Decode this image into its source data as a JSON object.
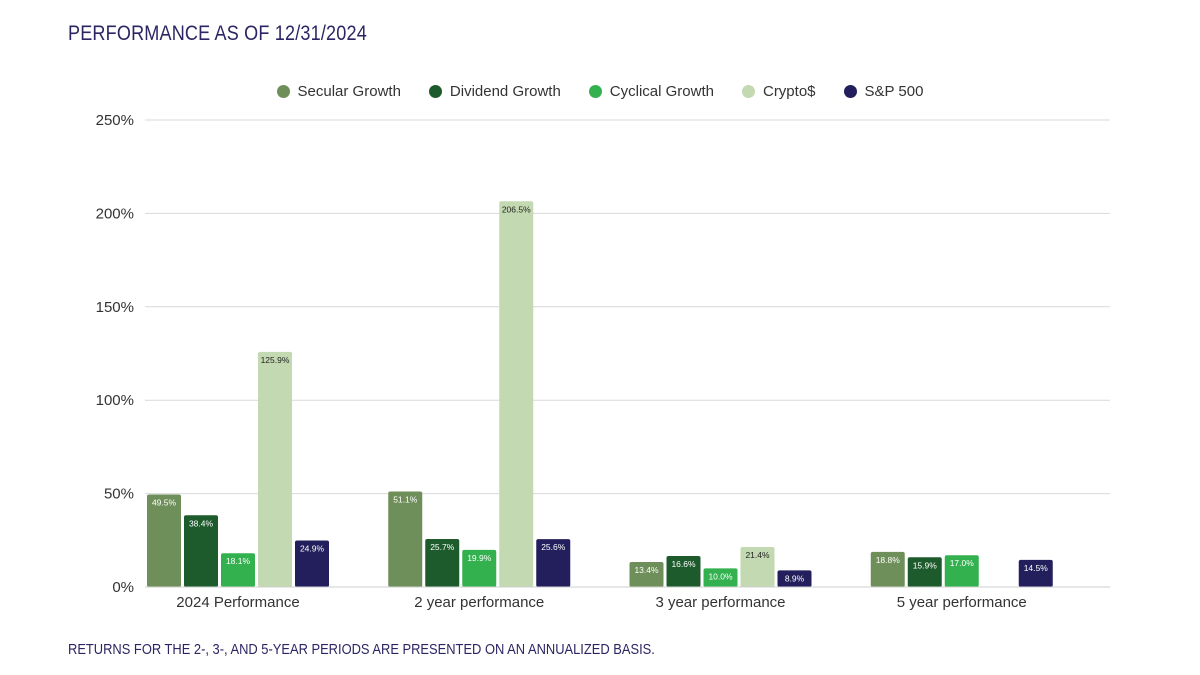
{
  "header": {
    "title": "PERFORMANCE AS OF 12/31/2024"
  },
  "footer": {
    "note": "RETURNS FOR THE 2-, 3-, AND 5-YEAR PERIODS ARE PRESENTED ON AN ANNUALIZED BASIS."
  },
  "colors": {
    "secular": "#6e8f5a",
    "dividend": "#1e5b2c",
    "cyclical": "#33b14f",
    "crypto": "#c3d9b1",
    "sp500": "#231f5c",
    "grid": "#d9d9d9",
    "text": "#2b2563"
  },
  "chart_data": {
    "type": "bar",
    "title": "PERFORMANCE AS OF 12/31/2024",
    "xlabel": "",
    "ylabel": "",
    "ylim": [
      0,
      250
    ],
    "y_ticks": [
      "0%",
      "50%",
      "100%",
      "150%",
      "200%",
      "250%"
    ],
    "y_tick_values": [
      0,
      50,
      100,
      150,
      200,
      250
    ],
    "grid": true,
    "legend_position": "top-center",
    "categories": [
      "2024 Performance",
      "2 year performance",
      "3 year performance",
      "5 year performance"
    ],
    "series": [
      {
        "name": "Secular Growth",
        "color": "#6e8f5a",
        "label_color": "#ffffff",
        "values": [
          49.5,
          51.1,
          13.4,
          18.8
        ],
        "labels": [
          "49.5%",
          "51.1%",
          "13.4%",
          "18.8%"
        ]
      },
      {
        "name": "Dividend Growth",
        "color": "#1e5b2c",
        "label_color": "#ffffff",
        "values": [
          38.4,
          25.7,
          16.6,
          15.9
        ],
        "labels": [
          "38.4%",
          "25.7%",
          "16.6%",
          "15.9%"
        ]
      },
      {
        "name": "Cyclical Growth",
        "color": "#33b14f",
        "label_color": "#ffffff",
        "values": [
          18.1,
          19.9,
          10.0,
          17.0
        ],
        "labels": [
          "18.1%",
          "19.9%",
          "10.0%",
          "17.0%"
        ]
      },
      {
        "name": "Crypto$",
        "color": "#c3d9b1",
        "label_color": "#222222",
        "values": [
          125.9,
          206.5,
          21.4,
          null
        ],
        "labels": [
          "125.9%",
          "206.5%",
          "21.4%",
          ""
        ]
      },
      {
        "name": "S&P 500",
        "color": "#231f5c",
        "label_color": "#ffffff",
        "values": [
          24.9,
          25.6,
          8.9,
          14.5
        ],
        "labels": [
          "24.9%",
          "25.6%",
          "8.9%",
          "14.5%"
        ]
      }
    ]
  }
}
